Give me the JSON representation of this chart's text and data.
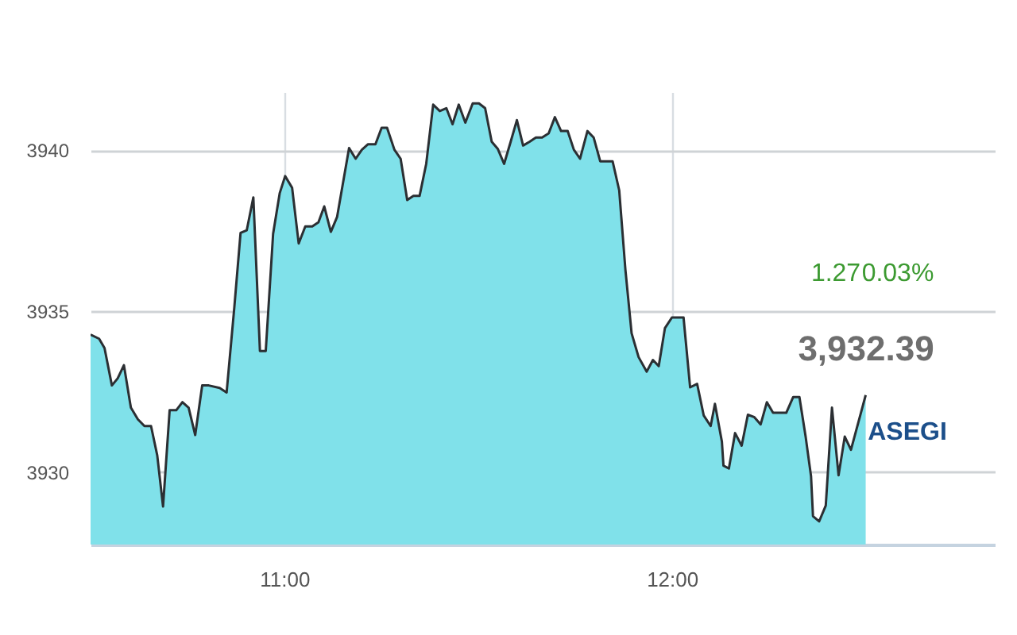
{
  "chart_data": {
    "type": "area",
    "x": [
      10.5,
      10.522,
      10.536,
      10.555,
      10.57,
      10.586,
      10.604,
      10.622,
      10.639,
      10.656,
      10.672,
      10.687,
      10.704,
      10.721,
      10.737,
      10.753,
      10.77,
      10.788,
      10.805,
      10.833,
      10.851,
      10.871,
      10.887,
      10.903,
      10.92,
      10.937,
      10.952,
      10.971,
      10.988,
      11.002,
      11.02,
      11.037,
      11.054,
      11.072,
      11.088,
      11.103,
      11.12,
      11.136,
      11.167,
      11.184,
      11.2,
      11.216,
      11.235,
      11.251,
      11.265,
      11.284,
      11.3,
      11.317,
      11.333,
      11.349,
      11.366,
      11.384,
      11.401,
      11.418,
      11.434,
      11.45,
      11.467,
      11.486,
      11.502,
      11.518,
      11.535,
      11.551,
      11.567,
      11.584,
      11.6,
      11.616,
      11.633,
      11.649,
      11.665,
      11.682,
      11.698,
      11.714,
      11.731,
      11.747,
      11.763,
      11.782,
      11.798,
      11.815,
      11.847,
      11.864,
      11.88,
      11.896,
      11.914,
      11.935,
      11.951,
      11.966,
      11.982,
      12.0,
      12.03,
      12.047,
      12.065,
      12.082,
      12.1,
      12.111,
      12.129,
      12.133,
      12.147,
      12.163,
      12.18,
      12.196,
      12.212,
      12.229,
      12.245,
      12.261,
      12.295,
      12.313,
      12.329,
      12.345,
      12.359,
      12.364,
      12.38,
      12.397,
      12.413,
      12.43,
      12.446,
      12.462,
      12.5
    ],
    "series": [
      {
        "name": "ASEGI",
        "color": "#80e1ea",
        "values": [
          3934.27,
          3934.14,
          3933.85,
          3932.69,
          3932.91,
          3933.32,
          3932.0,
          3931.64,
          3931.43,
          3931.43,
          3930.52,
          3928.93,
          3931.92,
          3931.92,
          3932.17,
          3932.0,
          3931.15,
          3932.69,
          3932.69,
          3932.61,
          3932.47,
          3935.13,
          3937.43,
          3937.51,
          3938.53,
          3933.76,
          3933.76,
          3937.4,
          3938.66,
          3939.19,
          3938.83,
          3937.1,
          3937.63,
          3937.63,
          3937.76,
          3938.25,
          3937.46,
          3937.92,
          3940.06,
          3939.73,
          3940.01,
          3940.18,
          3940.18,
          3940.69,
          3940.69,
          3940.01,
          3939.73,
          3938.45,
          3938.58,
          3938.58,
          3939.57,
          3941.41,
          3941.21,
          3941.3,
          3940.8,
          3941.41,
          3940.85,
          3941.45,
          3941.45,
          3941.3,
          3940.26,
          3940.03,
          3939.57,
          3940.26,
          3940.93,
          3940.14,
          3940.26,
          3940.39,
          3940.39,
          3940.52,
          3941.02,
          3940.59,
          3940.59,
          3940.01,
          3939.73,
          3940.59,
          3940.39,
          3939.65,
          3939.65,
          3938.75,
          3936.28,
          3934.31,
          3933.57,
          3933.12,
          3933.48,
          3933.29,
          3934.47,
          3934.8,
          3934.8,
          3932.63,
          3932.74,
          3931.76,
          3931.43,
          3932.12,
          3930.94,
          3930.2,
          3930.11,
          3931.21,
          3930.82,
          3931.78,
          3931.71,
          3931.48,
          3932.17,
          3931.84,
          3931.84,
          3932.33,
          3932.33,
          3931.1,
          3929.87,
          3928.63,
          3928.47,
          3928.96,
          3932.0,
          3929.9,
          3931.1,
          3930.69,
          3932.39
        ]
      }
    ],
    "xlim": [
      10.5,
      12.833
    ],
    "xticks": [
      {
        "value": 11,
        "label": "11:00"
      },
      {
        "value": 12,
        "label": "12:00"
      }
    ],
    "ylim": [
      3927.75,
      3941.8
    ],
    "yticks": [
      3930,
      3935,
      3940
    ],
    "grid": true,
    "annotations": [
      "1.27",
      "0.03%",
      "3,932.39"
    ]
  }
}
